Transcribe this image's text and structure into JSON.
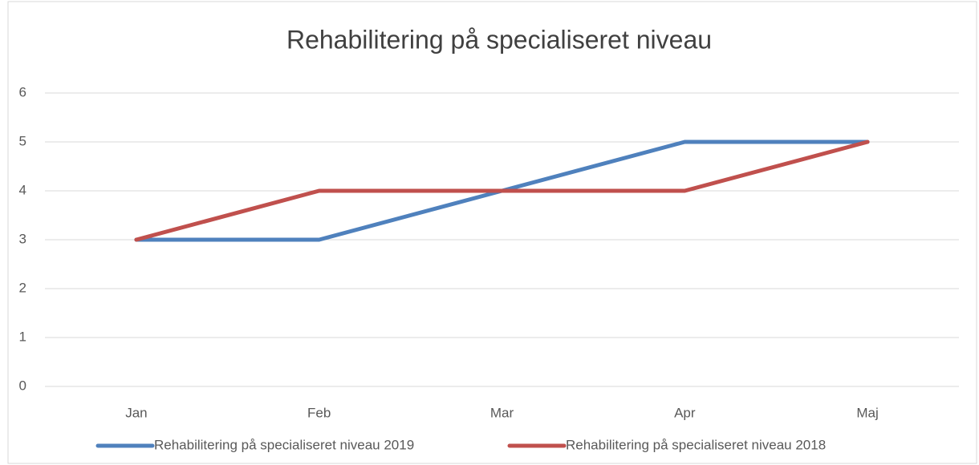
{
  "chart_data": {
    "type": "line",
    "title": "Rehabilitering på specialiseret niveau",
    "categories": [
      "Jan",
      "Feb",
      "Mar",
      "Apr",
      "Maj"
    ],
    "series": [
      {
        "name": "Rehabilitering på specialiseret niveau 2019",
        "color": "#4f81bd",
        "values": [
          3,
          3,
          4,
          5,
          5
        ]
      },
      {
        "name": "Rehabilitering på specialiseret niveau 2018",
        "color": "#c0504d",
        "values": [
          3,
          4,
          4,
          4,
          5
        ]
      }
    ],
    "ylim": [
      0,
      6
    ],
    "yticks": [
      0,
      1,
      2,
      3,
      4,
      5,
      6
    ],
    "grid": true,
    "legend": "bottom"
  }
}
